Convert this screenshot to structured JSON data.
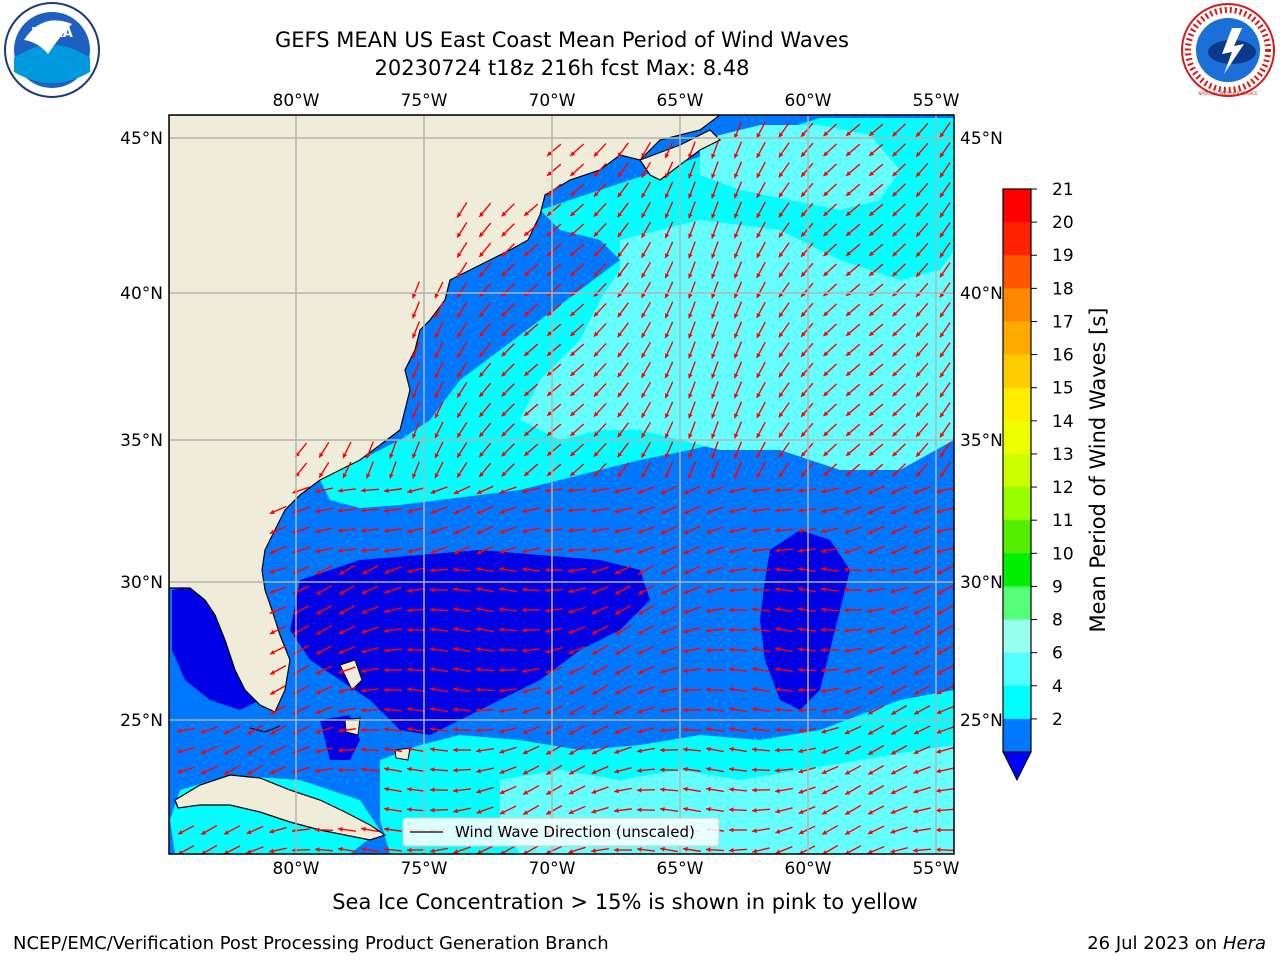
{
  "header": {
    "title_line1": "GEFS MEAN US East Coast Mean Period of Wind Waves",
    "title_line2": "20230724 t18z 216h fcst   Max: 8.48"
  },
  "logos": {
    "left_text": "NOAA",
    "right_text": "NATIONAL WEATHER SERVICE"
  },
  "map": {
    "lon_ticks_top": [
      "80°W",
      "75°W",
      "70°W",
      "65°W",
      "60°W",
      "55°W"
    ],
    "lon_ticks_bottom": [
      "80°W",
      "75°W",
      "70°W",
      "65°W",
      "60°W",
      "55°W"
    ],
    "lat_ticks_left": [
      "45°N",
      "40°N",
      "35°N",
      "30°N",
      "25°N"
    ],
    "lat_ticks_right": [
      "45°N",
      "40°N",
      "35°N",
      "30°N",
      "25°N"
    ],
    "legend_label": "Wind Wave Direction (unscaled)",
    "colors": {
      "land": "#efedd9",
      "band_2_4": "#0077ff",
      "band_below_2": "#0000e6",
      "band_4_6": "#00ffff",
      "band_6_8": "#66ffff",
      "arrow": "#ff0000",
      "grid": "#b3b3b3"
    }
  },
  "colorbar": {
    "label": "Mean Period of Wind Waves [s]",
    "ticks": [
      "21",
      "20",
      "19",
      "18",
      "17",
      "16",
      "15",
      "14",
      "13",
      "12",
      "11",
      "10",
      "9",
      "8",
      "6",
      "4",
      "2"
    ],
    "colors": [
      "#ff0000",
      "#ff2200",
      "#ff5500",
      "#ff8800",
      "#ffaa00",
      "#ffcc00",
      "#ffee00",
      "#eeff00",
      "#ccff00",
      "#99ff00",
      "#55ee00",
      "#00ee00",
      "#55ff77",
      "#99ffee",
      "#55ffff",
      "#00ffff",
      "#0077ff"
    ],
    "underflow_color": "#0000ff"
  },
  "footer": {
    "sea_ice_note": "Sea Ice Concentration > 15% is shown in pink to yellow",
    "producer": "NCEP/EMC/Verification Post Processing Product Generation Branch",
    "date": "26 Jul 2023 on ",
    "machine": "Hera"
  }
}
